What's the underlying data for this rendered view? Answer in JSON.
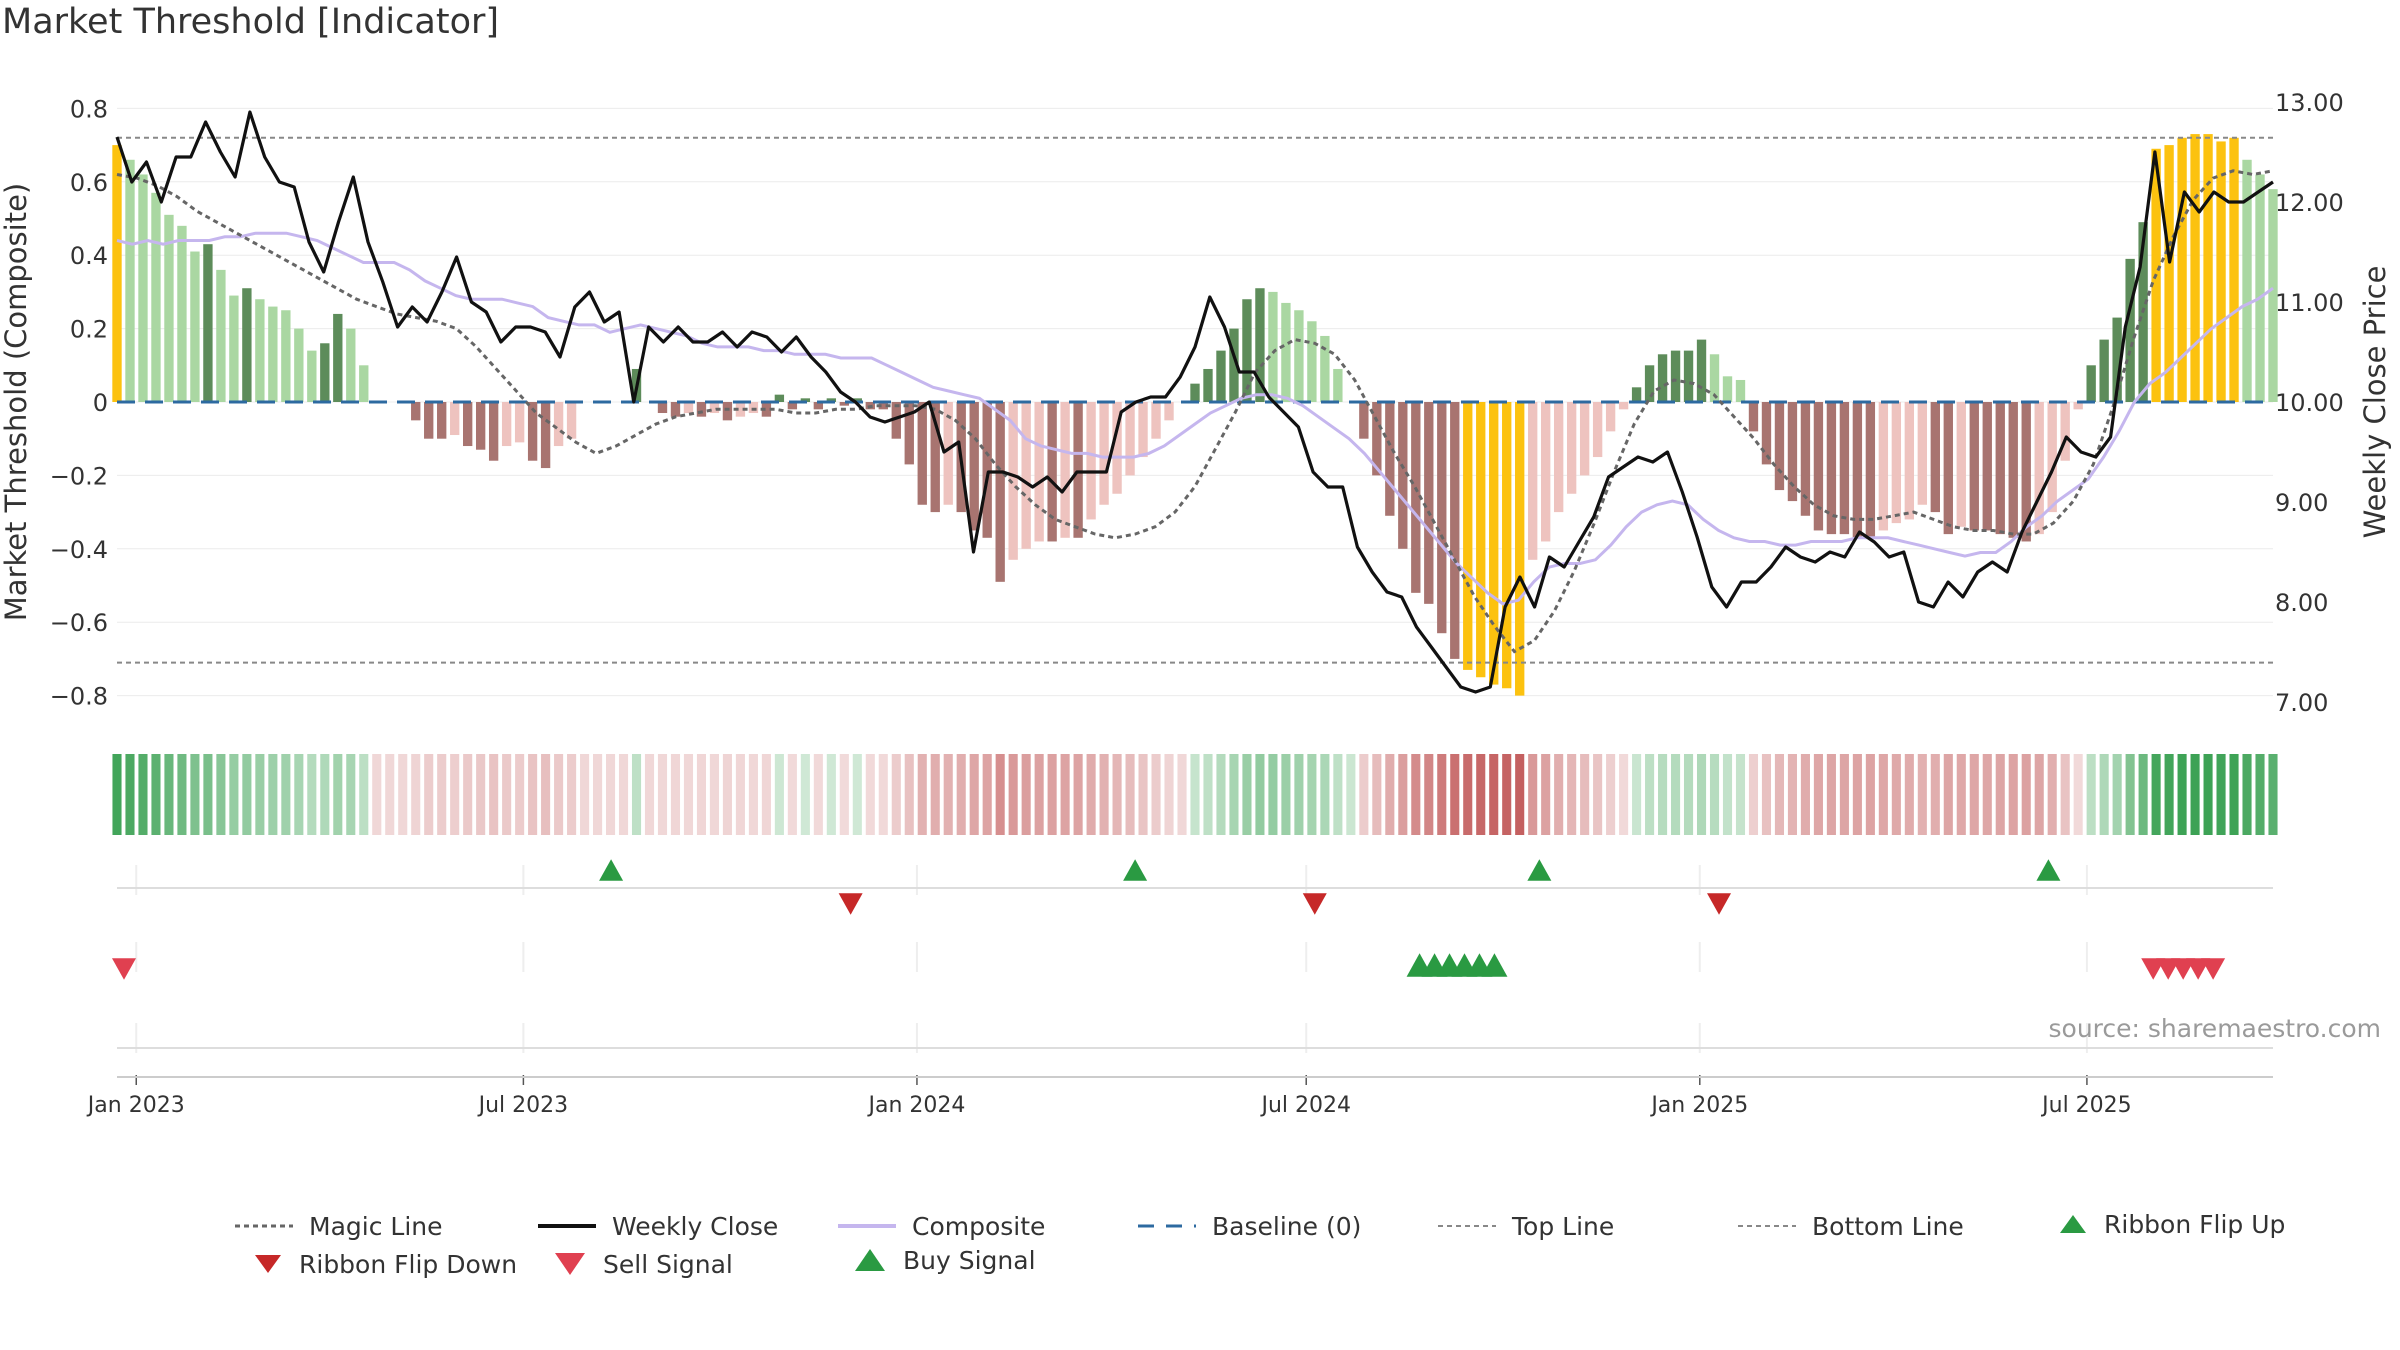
{
  "title": "Market Threshold [Indicator]",
  "source": "source: sharemaestro.com",
  "colors": {
    "magic": "#666666",
    "close": "#111111",
    "composite": "#c5b6ee",
    "baseline": "#2d6aa0",
    "limit": "#888888",
    "yellow": "#fcc20f",
    "buy": "#2a9a42",
    "sell": "#d0303a",
    "dark_green": "#5d8c5a",
    "light_green": "#aad7a2",
    "dark_red": "#a87470",
    "light_red": "#eec3bf"
  },
  "legend": [
    {
      "label": "Magic Line",
      "icon": "dotted-line"
    },
    {
      "label": "Weekly Close",
      "icon": "solid-line"
    },
    {
      "label": "Composite",
      "icon": "lavender-line"
    },
    {
      "label": "Baseline (0)",
      "icon": "dashed-line"
    },
    {
      "label": "Top Line",
      "icon": "dotted-grey-line"
    },
    {
      "label": "Bottom Line",
      "icon": "dotted-grey-line"
    },
    {
      "label": "Ribbon Flip Up",
      "icon": "triangle-up-green"
    },
    {
      "label": "Ribbon Flip Down",
      "icon": "triangle-down-darkred"
    },
    {
      "label": "Sell Signal",
      "icon": "triangle-down-red"
    },
    {
      "label": "Buy Signal",
      "icon": "triangle-up-green"
    }
  ],
  "chart_data": {
    "type": "bar",
    "ylabel_left": "Market Threshold (Composite)",
    "ylabel_right": "Weekly Close Price",
    "ylim_left": [
      -0.8,
      0.8
    ],
    "ylim_right": [
      7.0,
      13.0
    ],
    "yticks_left": [
      "0.8",
      "0.6",
      "0.4",
      "0.2",
      "0",
      "−0.2",
      "−0.4",
      "−0.6",
      "−0.8"
    ],
    "yticks_right": [
      "13.00",
      "12.00",
      "11.00",
      "10.00",
      "9.00",
      "8.00",
      "7.00"
    ],
    "xticks": [
      "Jan 2023",
      "Jul 2023",
      "Jan 2024",
      "Jul 2024",
      "Jan 2025",
      "Jul 2025"
    ],
    "top_line": 0.72,
    "bottom_line": -0.71,
    "start_date": "2022-12-23",
    "end_date": "2025-09-26",
    "grid": true,
    "legend_position": "bottom",
    "histogram": [
      0.7,
      0.66,
      0.62,
      0.57,
      0.51,
      0.48,
      0.41,
      0.43,
      0.36,
      0.29,
      0.31,
      0.28,
      0.26,
      0.25,
      0.2,
      0.14,
      0.16,
      0.24,
      0.2,
      0.1,
      0.0,
      0.0,
      0.0,
      -0.05,
      -0.1,
      -0.1,
      -0.09,
      -0.12,
      -0.13,
      -0.16,
      -0.12,
      -0.11,
      -0.16,
      -0.18,
      -0.12,
      -0.1,
      0.0,
      0.0,
      0.0,
      0.0,
      0.09,
      0.0,
      -0.03,
      -0.04,
      -0.03,
      -0.04,
      -0.03,
      -0.05,
      -0.04,
      -0.03,
      -0.04,
      0.02,
      -0.02,
      0.01,
      -0.02,
      0.01,
      -0.01,
      0.01,
      -0.02,
      -0.02,
      -0.1,
      -0.17,
      -0.28,
      -0.3,
      -0.28,
      -0.3,
      -0.35,
      -0.37,
      -0.49,
      -0.43,
      -0.4,
      -0.38,
      -0.38,
      -0.37,
      -0.37,
      -0.32,
      -0.28,
      -0.25,
      -0.2,
      -0.15,
      -0.1,
      -0.05,
      0.0,
      0.05,
      0.09,
      0.14,
      0.2,
      0.28,
      0.31,
      0.3,
      0.27,
      0.25,
      0.22,
      0.18,
      0.09,
      0.0,
      -0.1,
      -0.2,
      -0.31,
      -0.4,
      -0.52,
      -0.55,
      -0.63,
      -0.7,
      -0.73,
      -0.75,
      -0.77,
      -0.78,
      -0.8,
      -0.43,
      -0.38,
      -0.3,
      -0.25,
      -0.2,
      -0.15,
      -0.08,
      -0.02,
      0.04,
      0.1,
      0.13,
      0.14,
      0.14,
      0.17,
      0.13,
      0.07,
      0.06,
      -0.08,
      -0.17,
      -0.24,
      -0.27,
      -0.31,
      -0.35,
      -0.36,
      -0.36,
      -0.37,
      -0.37,
      -0.35,
      -0.33,
      -0.32,
      -0.28,
      -0.3,
      -0.36,
      -0.34,
      -0.35,
      -0.35,
      -0.36,
      -0.37,
      -0.38,
      -0.36,
      -0.3,
      -0.16,
      -0.02,
      0.1,
      0.17,
      0.23,
      0.39,
      0.49,
      0.69,
      0.7,
      0.72,
      0.73,
      0.73,
      0.71,
      0.72,
      0.66,
      0.62,
      0.58
    ],
    "weekly_close": [
      12.65,
      12.2,
      12.4,
      12.0,
      12.45,
      12.45,
      12.8,
      12.5,
      12.25,
      12.9,
      12.45,
      12.2,
      12.15,
      11.6,
      11.3,
      11.8,
      12.25,
      11.6,
      11.2,
      10.75,
      10.95,
      10.8,
      11.1,
      11.45,
      11.0,
      10.9,
      10.6,
      10.75,
      10.75,
      10.7,
      10.45,
      10.95,
      11.1,
      10.8,
      10.9,
      10.0,
      10.75,
      10.6,
      10.75,
      10.6,
      10.6,
      10.7,
      10.55,
      10.7,
      10.65,
      10.5,
      10.65,
      10.45,
      10.3,
      10.1,
      10.0,
      9.85,
      9.8,
      9.85,
      9.9,
      10.0,
      9.5,
      9.6,
      8.5,
      9.3,
      9.3,
      9.25,
      9.15,
      9.25,
      9.1,
      9.3,
      9.3,
      9.3,
      9.9,
      10.0,
      10.05,
      10.05,
      10.25,
      10.55,
      11.05,
      10.75,
      10.3,
      10.3,
      10.05,
      9.9,
      9.75,
      9.3,
      9.15,
      9.15,
      8.55,
      8.3,
      8.1,
      8.05,
      7.75,
      7.55,
      7.35,
      7.15,
      7.1,
      7.15,
      7.95,
      8.25,
      7.95,
      8.45,
      8.35,
      8.6,
      8.85,
      9.25,
      9.35,
      9.45,
      9.4,
      9.5,
      9.1,
      8.65,
      8.15,
      7.95,
      8.2,
      8.2,
      8.35,
      8.55,
      8.45,
      8.4,
      8.5,
      8.45,
      8.7,
      8.6,
      8.45,
      8.5,
      8.0,
      7.95,
      8.2,
      8.05,
      8.3,
      8.4,
      8.3,
      8.7,
      9.0,
      9.3,
      9.65,
      9.5,
      9.45,
      9.65,
      10.75,
      11.35,
      12.5,
      11.4,
      12.1,
      11.9,
      12.1,
      12.0,
      12.0,
      12.1,
      12.2
    ],
    "composite_line": [
      0.44,
      0.43,
      0.44,
      0.43,
      0.44,
      0.44,
      0.44,
      0.45,
      0.45,
      0.46,
      0.46,
      0.46,
      0.45,
      0.44,
      0.42,
      0.4,
      0.38,
      0.38,
      0.38,
      0.36,
      0.33,
      0.31,
      0.29,
      0.28,
      0.28,
      0.28,
      0.27,
      0.26,
      0.23,
      0.22,
      0.21,
      0.21,
      0.19,
      0.2,
      0.21,
      0.2,
      0.19,
      0.18,
      0.16,
      0.15,
      0.15,
      0.15,
      0.14,
      0.14,
      0.13,
      0.13,
      0.13,
      0.12,
      0.12,
      0.12,
      0.1,
      0.08,
      0.06,
      0.04,
      0.03,
      0.02,
      0.01,
      -0.02,
      -0.05,
      -0.1,
      -0.12,
      -0.13,
      -0.14,
      -0.14,
      -0.15,
      -0.15,
      -0.15,
      -0.14,
      -0.12,
      -0.09,
      -0.06,
      -0.03,
      -0.01,
      0.01,
      0.02,
      0.02,
      0.01,
      -0.01,
      -0.04,
      -0.07,
      -0.1,
      -0.14,
      -0.19,
      -0.24,
      -0.29,
      -0.34,
      -0.39,
      -0.44,
      -0.48,
      -0.52,
      -0.55,
      -0.54,
      -0.49,
      -0.45,
      -0.44,
      -0.44,
      -0.43,
      -0.39,
      -0.34,
      -0.3,
      -0.28,
      -0.27,
      -0.28,
      -0.32,
      -0.35,
      -0.37,
      -0.38,
      -0.38,
      -0.39,
      -0.39,
      -0.38,
      -0.38,
      -0.38,
      -0.37,
      -0.37,
      -0.37,
      -0.38,
      -0.39,
      -0.4,
      -0.41,
      -0.42,
      -0.41,
      -0.41,
      -0.38,
      -0.34,
      -0.31,
      -0.27,
      -0.24,
      -0.21,
      -0.15,
      -0.08,
      0.0,
      0.05,
      0.08,
      0.12,
      0.16,
      0.2,
      0.23,
      0.26,
      0.28,
      0.31
    ],
    "magic_line": [
      0.62,
      0.61,
      0.59,
      0.56,
      0.52,
      0.49,
      0.46,
      0.43,
      0.4,
      0.37,
      0.34,
      0.31,
      0.28,
      0.26,
      0.24,
      0.23,
      0.22,
      0.2,
      0.15,
      0.09,
      0.03,
      -0.03,
      -0.07,
      -0.11,
      -0.14,
      -0.12,
      -0.09,
      -0.06,
      -0.04,
      -0.03,
      -0.02,
      -0.02,
      -0.02,
      -0.02,
      -0.03,
      -0.03,
      -0.02,
      -0.02,
      -0.01,
      -0.01,
      -0.01,
      -0.02,
      -0.05,
      -0.1,
      -0.17,
      -0.23,
      -0.28,
      -0.32,
      -0.34,
      -0.36,
      -0.37,
      -0.36,
      -0.34,
      -0.3,
      -0.23,
      -0.13,
      -0.03,
      0.08,
      0.14,
      0.17,
      0.16,
      0.13,
      0.06,
      -0.04,
      -0.14,
      -0.23,
      -0.33,
      -0.43,
      -0.53,
      -0.61,
      -0.68,
      -0.65,
      -0.57,
      -0.46,
      -0.33,
      -0.19,
      -0.06,
      0.03,
      0.06,
      0.05,
      0.02,
      -0.04,
      -0.1,
      -0.17,
      -0.23,
      -0.28,
      -0.31,
      -0.32,
      -0.32,
      -0.31,
      -0.3,
      -0.32,
      -0.34,
      -0.35,
      -0.35,
      -0.36,
      -0.36,
      -0.33,
      -0.27,
      -0.17,
      -0.01,
      0.17,
      0.33,
      0.45,
      0.55,
      0.61,
      0.63,
      0.62,
      0.63
    ],
    "ribbon_flip_up_dates": [
      "2023-08-11",
      "2024-04-12",
      "2024-10-18",
      "2025-06-13"
    ],
    "ribbon_flip_down_dates": [
      "2023-12-01",
      "2024-07-05",
      "2025-01-10"
    ],
    "sell_signal_dates": [
      "2022-12-23",
      "2025-08-01",
      "2025-08-08",
      "2025-08-15",
      "2025-08-22",
      "2025-08-29"
    ],
    "buy_signal_dates": [
      "2024-08-23",
      "2024-08-30",
      "2024-09-06",
      "2024-09-13",
      "2024-09-20",
      "2024-09-27"
    ]
  }
}
